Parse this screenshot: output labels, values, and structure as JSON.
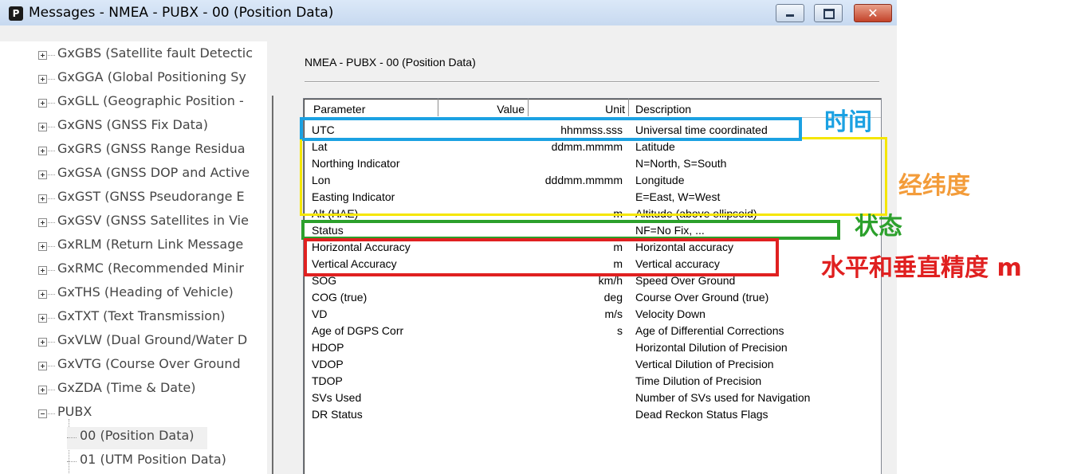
{
  "window": {
    "title": "Messages - NMEA - PUBX - 00 (Position Data)",
    "icon": "p-app-icon"
  },
  "window_controls": {
    "minimize": "minimize-icon",
    "maximize": "maximize-icon",
    "close_glyph": "✕"
  },
  "tree": {
    "items": [
      "GxGBS (Satellite fault Detectic",
      "GxGGA (Global Positioning Sy",
      "GxGLL (Geographic Position -",
      "GxGNS (GNSS Fix Data)",
      "GxGRS (GNSS Range Residua",
      "GxGSA (GNSS DOP and Active",
      "GxGST (GNSS Pseudorange E",
      "GxGSV (GNSS Satellites in Vie",
      "GxRLM (Return Link Message",
      "GxRMC (Recommended Minir",
      "GxTHS (Heading of Vehicle)",
      "GxTXT (Text Transmission)",
      "GxVLW (Dual Ground/Water D",
      "GxVTG (Course Over Ground",
      "GxZDA (Time & Date)"
    ],
    "group": "PUBX",
    "children": [
      "00 (Position Data)",
      "01 (UTM Position Data)"
    ],
    "selected_child": "00 (Position Data)"
  },
  "panel": {
    "title": "NMEA - PUBX - 00 (Position Data)"
  },
  "table": {
    "headers": {
      "parameter": "Parameter",
      "value": "Value",
      "unit": "Unit",
      "description": "Description"
    },
    "rows": [
      {
        "parameter": "UTC",
        "value": "",
        "unit": "hhmmss.sss",
        "description": "Universal time coordinated"
      },
      {
        "parameter": "Lat",
        "value": "",
        "unit": "ddmm.mmmm",
        "description": "Latitude"
      },
      {
        "parameter": "Northing Indicator",
        "value": "",
        "unit": "",
        "description": "N=North, S=South"
      },
      {
        "parameter": "Lon",
        "value": "",
        "unit": "dddmm.mmmm",
        "description": "Longitude"
      },
      {
        "parameter": "Easting Indicator",
        "value": "",
        "unit": "",
        "description": "E=East, W=West"
      },
      {
        "parameter": "Alt (HAE)",
        "value": "",
        "unit": "m",
        "description": "Altitude (above ellipsoid)"
      },
      {
        "parameter": "Status",
        "value": "",
        "unit": "",
        "description": "NF=No Fix, ..."
      },
      {
        "parameter": "Horizontal Accuracy",
        "value": "",
        "unit": "m",
        "description": "Horizontal accuracy"
      },
      {
        "parameter": "Vertical Accuracy",
        "value": "",
        "unit": "m",
        "description": "Vertical accuracy"
      },
      {
        "parameter": "SOG",
        "value": "",
        "unit": "km/h",
        "description": "Speed Over Ground"
      },
      {
        "parameter": "COG (true)",
        "value": "",
        "unit": "deg",
        "description": "Course Over Ground (true)"
      },
      {
        "parameter": "VD",
        "value": "",
        "unit": "m/s",
        "description": "Velocity Down"
      },
      {
        "parameter": "Age of DGPS Corr",
        "value": "",
        "unit": "s",
        "description": "Age of Differential Corrections"
      },
      {
        "parameter": "HDOP",
        "value": "",
        "unit": "",
        "description": "Horizontal Dilution of Precision"
      },
      {
        "parameter": "VDOP",
        "value": "",
        "unit": "",
        "description": "Vertical Dilution of Precision"
      },
      {
        "parameter": "TDOP",
        "value": "",
        "unit": "",
        "description": "Time Dilution of Precision"
      },
      {
        "parameter": "SVs Used",
        "value": "",
        "unit": "",
        "description": "Number of SVs used for Navigation"
      },
      {
        "parameter": "DR Status",
        "value": "",
        "unit": "",
        "description": "Dead Reckon Status Flags"
      }
    ]
  },
  "annotations": {
    "time": {
      "label": "时间",
      "color": "#1ba1e2"
    },
    "latlon": {
      "label": "经纬度",
      "color": "#f39c3a"
    },
    "latlon_box_color": "#f5e600",
    "status": {
      "label": "状态",
      "color": "#2ca02c"
    },
    "accuracy": {
      "label": "水平和垂直精度 m",
      "color": "#e02020"
    }
  }
}
